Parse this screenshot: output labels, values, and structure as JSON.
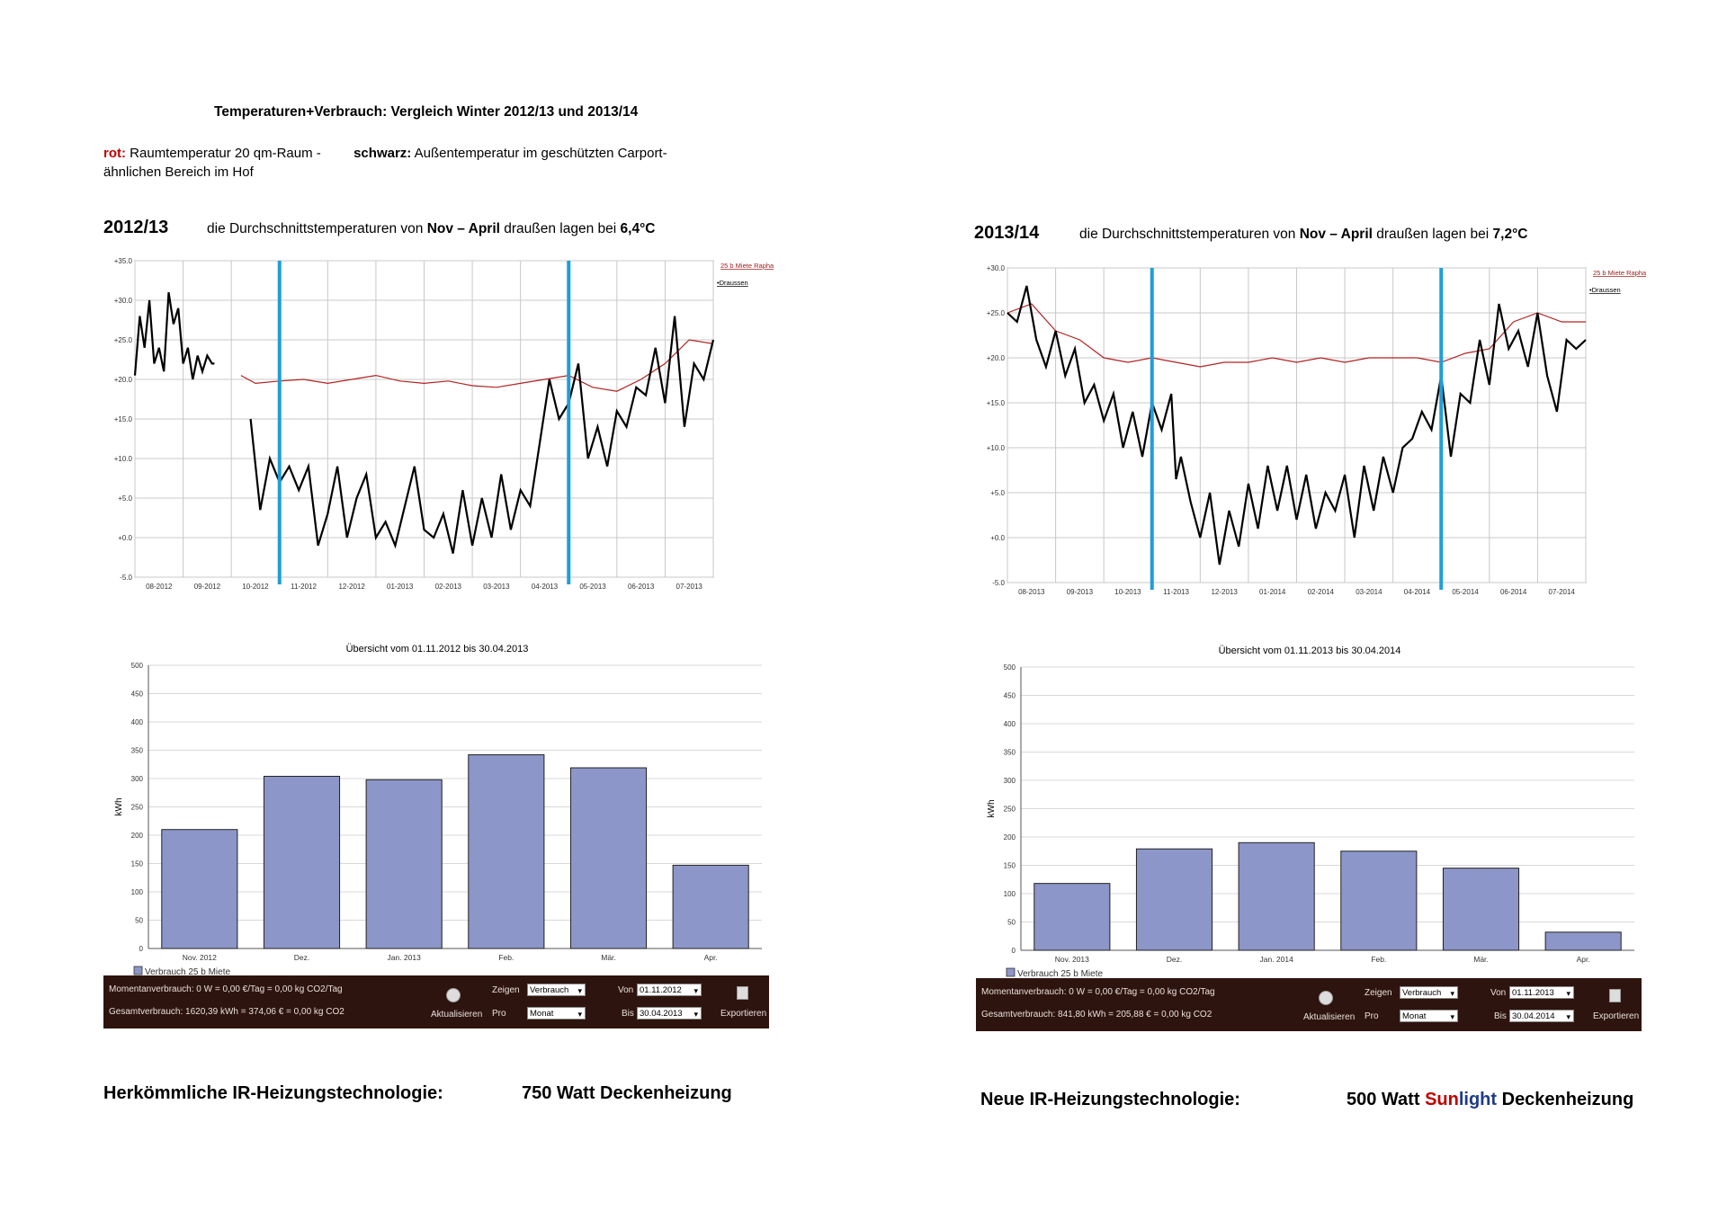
{
  "header": {
    "title": "Temperaturen+Verbrauch: Vergleich Winter 2012/13 und 2013/14",
    "legend_red_key": "rot:",
    "legend_red_text": "Raumtemperatur 20 qm-Raum    -",
    "legend_black_key": "schwarz:",
    "legend_black_text": "Außentemperatur im geschützten Carport-",
    "legend_line2": "ähnlichen Bereich im Hof"
  },
  "left": {
    "season": "2012/13",
    "sentence_a": "die Durchschnittstemperaturen von ",
    "sentence_b": "Nov – April",
    "sentence_c": " draußen lagen bei ",
    "sentence_d": "6,4°C",
    "tech_label": "Herkömmliche IR-Heizungstechnologie:",
    "tech_value": "750 Watt Deckenheizung",
    "panel": {
      "moment": "Momentanverbrauch: 0 W = 0,00 €/Tag = 0,00 kg CO2/Tag",
      "total": "Gesamtverbrauch: 1620,39 kWh = 374,06 € = 0,00 kg CO2",
      "refresh": "Aktualisieren",
      "show_label": "Zeigen",
      "show_value": "Verbrauch",
      "per_label": "Pro",
      "per_value": "Monat",
      "from_label": "Von",
      "from_value": "01.11.2012",
      "to_label": "Bis",
      "to_value": "30.04.2013",
      "export": "Exportieren"
    }
  },
  "right": {
    "season": "2013/14",
    "sentence_a": "die Durchschnittstemperaturen von ",
    "sentence_b": "Nov – April",
    "sentence_c": " draußen lagen bei ",
    "sentence_d": "7,2°C",
    "tech_label": "Neue IR-Heizungstechnologie:",
    "tech_value_a": "500 Watt ",
    "tech_value_sun": "Sun",
    "tech_value_light": "light",
    "tech_value_b": " Deckenheizung",
    "panel": {
      "moment": "Momentanverbrauch: 0 W = 0,00 €/Tag = 0,00 kg CO2/Tag",
      "total": "Gesamtverbrauch: 841,80 kWh = 205,88 € = 0,00 kg CO2",
      "refresh": "Aktualisieren",
      "show_label": "Zeigen",
      "show_value": "Verbrauch",
      "per_label": "Pro",
      "per_value": "Monat",
      "from_label": "Von",
      "from_value": "01.11.2013",
      "to_label": "Bis",
      "to_value": "30.04.2014",
      "export": "Exportieren"
    }
  },
  "chart_data": [
    {
      "type": "line",
      "y_ticks": [
        "+35.0",
        "+30.0",
        "+25.0",
        "+20.0",
        "+15.0",
        "+10.0",
        "+5.0",
        "+0.0",
        "-5.0"
      ],
      "ylim": [
        -5,
        35
      ],
      "x_ticks": [
        "08-2012",
        "09-2012",
        "10-2012",
        "11-2012",
        "12-2012",
        "01-2013",
        "02-2013",
        "03-2013",
        "04-2013",
        "05-2013",
        "06-2013",
        "07-2013"
      ],
      "legend": [
        "25 b Miete Raphael",
        "Draussen"
      ],
      "colors": {
        "inside": "#b22222",
        "outside": "#000000",
        "marker": "#1e9fd8"
      },
      "markers": [
        "11-2012",
        "05-2013"
      ],
      "series": [
        {
          "name": "25 b Miete Raphael",
          "x": [
            2.2,
            2.5,
            3.0,
            3.5,
            4.0,
            4.5,
            5.0,
            5.5,
            6.0,
            6.5,
            7.0,
            7.5,
            8.0,
            8.5,
            9.0,
            9.5,
            10.0,
            10.5,
            11.0,
            11.5,
            12.0
          ],
          "values": [
            20.5,
            19.5,
            19.8,
            20.0,
            19.5,
            20.0,
            20.5,
            19.8,
            19.5,
            19.8,
            19.2,
            19.0,
            19.5,
            20.0,
            20.5,
            19.0,
            18.5,
            20.0,
            22.0,
            25.0,
            24.5
          ]
        },
        {
          "name": "Draussen",
          "x": [
            0,
            0.1,
            0.2,
            0.3,
            0.4,
            0.5,
            0.6,
            0.7,
            0.8,
            0.9,
            1.0,
            1.1,
            1.2,
            1.3,
            1.4,
            1.5,
            1.6,
            1.65,
            2.4,
            2.6,
            2.8,
            3.0,
            3.2,
            3.4,
            3.6,
            3.8,
            4.0,
            4.2,
            4.4,
            4.6,
            4.8,
            5.0,
            5.2,
            5.4,
            5.6,
            5.8,
            6.0,
            6.2,
            6.4,
            6.6,
            6.8,
            7.0,
            7.2,
            7.4,
            7.6,
            7.8,
            8.0,
            8.2,
            8.4,
            8.6,
            8.8,
            9.0,
            9.2,
            9.4,
            9.6,
            9.8,
            10.0,
            10.2,
            10.4,
            10.6,
            10.8,
            11.0,
            11.2,
            11.4,
            11.6,
            11.8,
            12.0
          ],
          "values": [
            20.5,
            28,
            24,
            30,
            22,
            24,
            21,
            31,
            27,
            29,
            22,
            24,
            20,
            23,
            21,
            23,
            22,
            22,
            15,
            3.5,
            10,
            7,
            9,
            6,
            9,
            -1,
            3,
            9,
            0,
            5,
            8,
            0,
            2,
            -1,
            4,
            9,
            1,
            0,
            3,
            -2,
            6,
            -1,
            5,
            0,
            8,
            1,
            6,
            4,
            12,
            20,
            15,
            17,
            22,
            10,
            14,
            9,
            16,
            14,
            19,
            18,
            24,
            17,
            28,
            14,
            22,
            20,
            25
          ]
        }
      ]
    },
    {
      "type": "line",
      "y_ticks": [
        "+30.0",
        "+25.0",
        "+20.0",
        "+15.0",
        "+10.0",
        "+5.0",
        "+0.0",
        "-5.0"
      ],
      "ylim": [
        -5,
        30
      ],
      "x_ticks": [
        "08-2013",
        "09-2013",
        "10-2013",
        "11-2013",
        "12-2013",
        "01-2014",
        "02-2014",
        "03-2014",
        "04-2014",
        "05-2014",
        "06-2014",
        "07-2014"
      ],
      "legend": [
        "25 b Miete Raphael",
        "Draussen"
      ],
      "colors": {
        "inside": "#b22222",
        "outside": "#000000",
        "marker": "#1e9fd8"
      },
      "markers": [
        "11-2013",
        "05-2014"
      ],
      "series": [
        {
          "name": "25 b Miete Raphael",
          "x": [
            0,
            0.5,
            1.0,
            1.5,
            2.0,
            2.5,
            3.0,
            3.5,
            4.0,
            4.5,
            5.0,
            5.5,
            6.0,
            6.5,
            7.0,
            7.5,
            8.0,
            8.5,
            9.0,
            9.5,
            10.0,
            10.5,
            11.0,
            11.5,
            12.0
          ],
          "values": [
            25,
            26,
            23,
            22,
            20,
            19.5,
            20,
            19.5,
            19,
            19.5,
            19.5,
            20,
            19.5,
            20,
            19.5,
            20,
            20,
            20,
            19.5,
            20.5,
            21,
            24,
            25,
            24,
            24
          ]
        },
        {
          "name": "Draussen",
          "x": [
            0,
            0.2,
            0.4,
            0.6,
            0.8,
            1.0,
            1.2,
            1.4,
            1.6,
            1.8,
            2.0,
            2.2,
            2.4,
            2.6,
            2.8,
            3.0,
            3.2,
            3.4,
            3.5,
            3.6,
            3.8,
            4.0,
            4.2,
            4.4,
            4.6,
            4.8,
            5.0,
            5.2,
            5.4,
            5.6,
            5.8,
            6.0,
            6.2,
            6.4,
            6.6,
            6.8,
            7.0,
            7.2,
            7.4,
            7.6,
            7.8,
            8.0,
            8.2,
            8.4,
            8.6,
            8.8,
            9.0,
            9.2,
            9.4,
            9.6,
            9.8,
            10.0,
            10.2,
            10.4,
            10.6,
            10.8,
            11.0,
            11.2,
            11.4,
            11.6,
            11.8,
            12.0
          ],
          "values": [
            25,
            24,
            28,
            22,
            19,
            23,
            18,
            21,
            15,
            17,
            13,
            16,
            10,
            14,
            9,
            15,
            12,
            16,
            6.5,
            9,
            4,
            0,
            5,
            -3,
            3,
            -1,
            6,
            1,
            8,
            3,
            8,
            2,
            7,
            1,
            5,
            3,
            7,
            0,
            8,
            3,
            9,
            5,
            10,
            11,
            14,
            12,
            18,
            9,
            16,
            15,
            22,
            17,
            26,
            21,
            23,
            19,
            25,
            18,
            14,
            22,
            21,
            22
          ]
        }
      ]
    },
    {
      "type": "bar",
      "title": "Übersicht vom 01.11.2012 bis 30.04.2013",
      "ylabel": "kWh",
      "ylim": [
        0,
        500
      ],
      "y_ticks": [
        "500",
        "450",
        "400",
        "350",
        "300",
        "250",
        "200",
        "150",
        "100",
        "50",
        "0"
      ],
      "categories": [
        "Nov. 2012",
        "Dez.",
        "Jan. 2013",
        "Feb.",
        "Mär.",
        "Apr."
      ],
      "series": [
        {
          "name": "Verbrauch  25 b Miete",
          "values": [
            210,
            304,
            298,
            342,
            319,
            147
          ]
        }
      ],
      "colors": {
        "bar": "#8c96c8"
      }
    },
    {
      "type": "bar",
      "title": "Übersicht vom 01.11.2013 bis 30.04.2014",
      "ylabel": "kWh",
      "ylim": [
        0,
        500
      ],
      "y_ticks": [
        "500",
        "450",
        "400",
        "350",
        "300",
        "250",
        "200",
        "150",
        "100",
        "50",
        "0"
      ],
      "categories": [
        "Nov. 2013",
        "Dez.",
        "Jan. 2014",
        "Feb.",
        "Mär.",
        "Apr."
      ],
      "series": [
        {
          "name": "Verbrauch  25 b Miete",
          "values": [
            118,
            179,
            190,
            175,
            145,
            32
          ]
        }
      ],
      "colors": {
        "bar": "#8c96c8"
      }
    }
  ]
}
